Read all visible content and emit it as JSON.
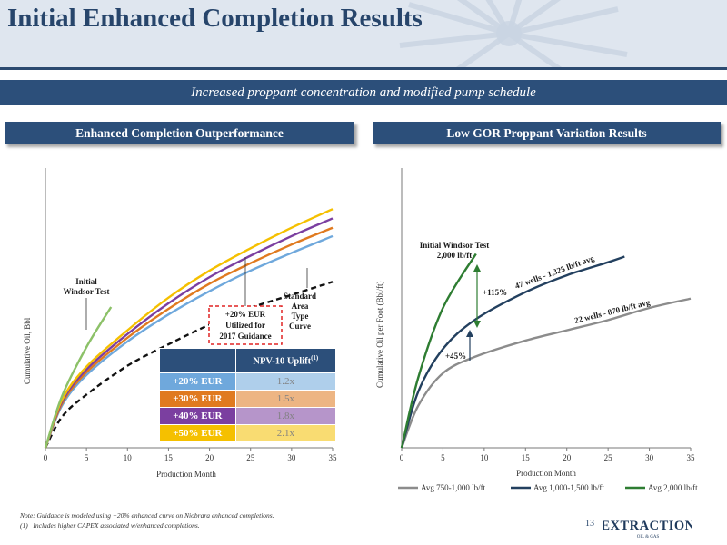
{
  "header": {
    "title": "Initial Enhanced Completion Results"
  },
  "subtitle": "Increased proppant concentration and modified pump schedule",
  "left_panel": {
    "heading": "Enhanced Completion Outperformance",
    "ylabel": "Cumulative Oil, Bbl",
    "xlabel": "Production Month",
    "annotations": {
      "initial": [
        "Initial",
        "Windsor Test"
      ],
      "guidance": [
        "+20% EUR",
        "Utilized for",
        "2017 Guidance"
      ],
      "standard": [
        "Standard",
        "Area",
        "Type",
        "Curve"
      ]
    },
    "table": {
      "header": "NPV-10 Uplift",
      "header_sup": "(1)",
      "rows": [
        {
          "label": "+20% EUR",
          "value": "1.2x",
          "color": "#6fa8dc"
        },
        {
          "label": "+30% EUR",
          "value": "1.5x",
          "color": "#e07a1f"
        },
        {
          "label": "+40% EUR",
          "value": "1.8x",
          "color": "#7b3fa0"
        },
        {
          "label": "+50% EUR",
          "value": "2.1x",
          "color": "#f5c000"
        }
      ]
    }
  },
  "right_panel": {
    "heading": "Low GOR Proppant Variation Results",
    "ylabel": "Cumulative Oil per Foot (Bbl/ft)",
    "xlabel": "Production Month",
    "annotations": {
      "initial": [
        "Initial Windsor Test",
        "2,000 lb/ft"
      ],
      "pct115": "+115%",
      "pct45": "+45%",
      "label47": "47 wells - 1,325 lb/ft avg",
      "label22": "22 wells - 870 lb/ft avg"
    },
    "legend": [
      "Avg 750-1,000 lb/ft",
      "Avg 1,000-1,500 lb/ft",
      "Avg 2,000 lb/ft"
    ]
  },
  "chart_data": [
    {
      "type": "line",
      "xlabel": "Production Month",
      "ylabel": "Cumulative Oil, Bbl",
      "xlim": [
        0,
        35
      ],
      "xticks": [
        0,
        5,
        10,
        15,
        20,
        25,
        30,
        35
      ],
      "yticks_shown": false,
      "grid": false,
      "series": [
        {
          "name": "Standard Area Type Curve",
          "color": "#111111",
          "dashed": true,
          "x": [
            0,
            2,
            5,
            10,
            15,
            20,
            25,
            30,
            35
          ],
          "y": [
            0,
            33,
            57,
            88,
            111,
            132,
            150,
            164,
            178
          ]
        },
        {
          "name": "+20% EUR",
          "color": "#6fa8dc",
          "x": [
            0,
            2,
            5,
            10,
            15,
            20,
            25,
            30,
            35
          ],
          "y": [
            0,
            45,
            78,
            114,
            143,
            168,
            190,
            209,
            227
          ]
        },
        {
          "name": "+30% EUR",
          "color": "#e07a1f",
          "x": [
            0,
            2,
            5,
            10,
            15,
            20,
            25,
            30,
            35
          ],
          "y": [
            0,
            47,
            81,
            118,
            149,
            176,
            198,
            218,
            236
          ]
        },
        {
          "name": "+40% EUR",
          "color": "#7b3fa0",
          "x": [
            0,
            2,
            5,
            10,
            15,
            20,
            25,
            30,
            35
          ],
          "y": [
            0,
            49,
            84,
            122,
            155,
            183,
            206,
            227,
            246
          ]
        },
        {
          "name": "+50% EUR",
          "color": "#f5c000",
          "x": [
            0,
            2,
            5,
            10,
            15,
            20,
            25,
            30,
            35
          ],
          "y": [
            0,
            51,
            87,
            126,
            161,
            190,
            214,
            236,
            256
          ]
        },
        {
          "name": "Initial Windsor Test",
          "color": "#8cc168",
          "x": [
            0,
            2,
            5,
            8
          ],
          "y": [
            0,
            55,
            108,
            151
          ]
        }
      ]
    },
    {
      "type": "line",
      "xlabel": "Production Month",
      "ylabel": "Cumulative Oil per Foot (Bbl/ft)",
      "xlim": [
        0,
        35
      ],
      "xticks": [
        0,
        5,
        10,
        15,
        20,
        25,
        30,
        35
      ],
      "yticks_shown": false,
      "grid": false,
      "legend": "bottom",
      "series": [
        {
          "name": "Avg 750-1,000 lb/ft",
          "color": "#8c8c8c",
          "x": [
            0,
            2,
            5,
            9,
            15,
            20,
            25,
            30,
            35
          ],
          "y": [
            0,
            45,
            80,
            98,
            115,
            126,
            137,
            150,
            160
          ]
        },
        {
          "name": "Avg 1,000-1,500 lb/ft",
          "color": "#23405f",
          "x": [
            0,
            2,
            5,
            9,
            15,
            20,
            25,
            27
          ],
          "y": [
            0,
            60,
            106,
            138,
            167,
            185,
            199,
            205
          ]
        },
        {
          "name": "Avg 2,000 lb/ft",
          "color": "#2e7d32",
          "x": [
            0,
            2,
            5,
            9
          ],
          "y": [
            0,
            75,
            150,
            208
          ]
        }
      ]
    }
  ],
  "footnote": {
    "note": "Note: Guidance is modeled using +20% enhanced curve on Niobrara enhanced completions.",
    "item_marker": "(1)",
    "item": "Includes higher CAPEX associated w/enhanced completions."
  },
  "page_number": "13",
  "logo": {
    "name": "EXTRACTION",
    "sub": "OIL & GAS"
  }
}
